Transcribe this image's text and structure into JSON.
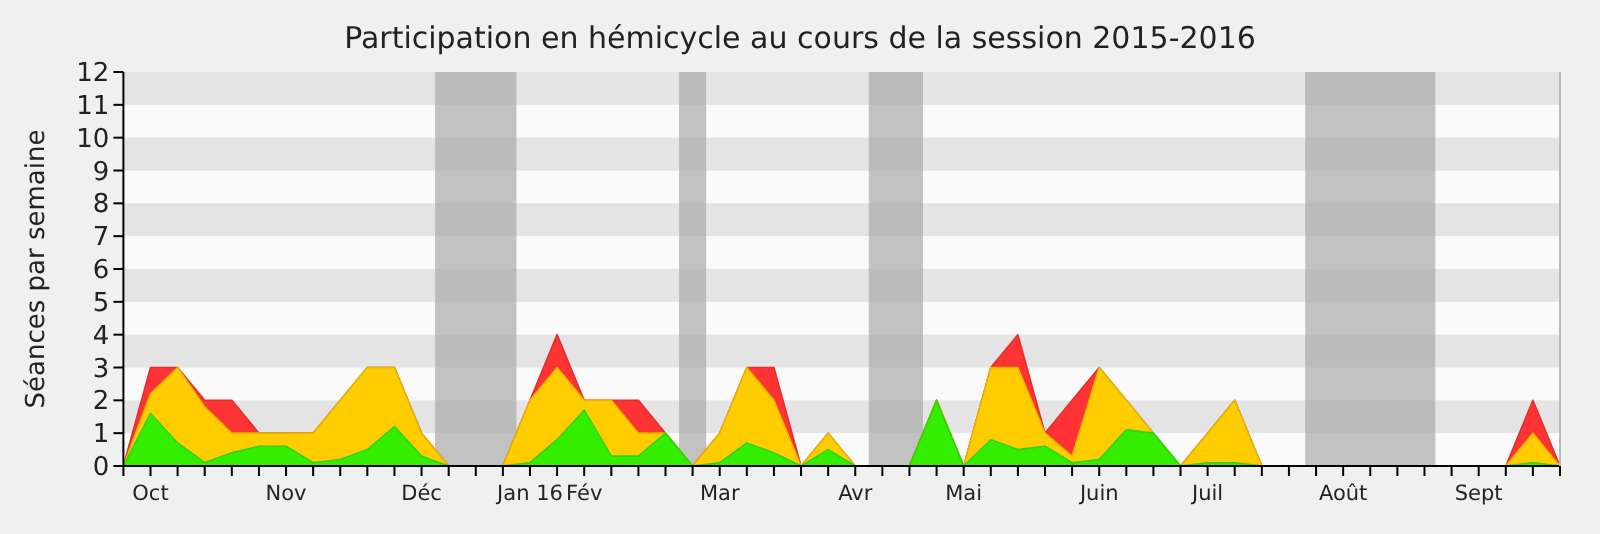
{
  "chart_data": {
    "type": "area",
    "title": "Participation en hémicycle au cours de la session 2015-2016",
    "ylabel": "Séances par semaine",
    "stacked": true,
    "categories": [
      null,
      "Oct",
      null,
      null,
      null,
      null,
      "Nov",
      null,
      null,
      null,
      null,
      "Déc",
      null,
      null,
      null,
      "Jan 16",
      null,
      "Fév",
      null,
      null,
      null,
      null,
      "Mar",
      null,
      null,
      null,
      null,
      "Avr",
      null,
      null,
      null,
      "Mai",
      null,
      null,
      null,
      null,
      "Juin",
      null,
      null,
      null,
      "Juil",
      null,
      null,
      null,
      null,
      "Août",
      null,
      null,
      null,
      null,
      "Sept",
      null,
      null,
      null
    ],
    "ylim": [
      0,
      12
    ],
    "yticks": [
      0,
      1,
      2,
      3,
      4,
      5,
      6,
      7,
      8,
      9,
      10,
      11,
      12
    ],
    "series": [
      {
        "color": "#33ee00",
        "values": [
          0,
          1.6,
          0.7,
          0.1,
          0.4,
          0.6,
          0.6,
          0.1,
          0.2,
          0.5,
          1.2,
          0.3,
          0,
          0,
          0,
          0.1,
          0.8,
          1.7,
          0.3,
          0.3,
          1,
          0,
          0.1,
          0.7,
          0.4,
          0,
          0.5,
          0,
          0,
          0,
          2,
          0,
          0.8,
          0.5,
          0.6,
          0.1,
          0.2,
          1.1,
          1,
          0,
          0.1,
          0.1,
          0,
          0,
          0,
          0,
          0,
          0,
          0,
          0,
          0,
          0,
          0.1,
          0
        ]
      },
      {
        "color": "#ffcc00",
        "values": [
          0,
          0.6,
          2.3,
          1.7,
          0.6,
          0.4,
          0.4,
          0.9,
          1.8,
          2.5,
          1.8,
          0.7,
          0,
          0,
          0,
          1.9,
          2.2,
          0.3,
          1.7,
          0.7,
          0,
          0,
          0.9,
          2.3,
          1.6,
          0,
          0.5,
          0,
          0,
          0,
          0,
          0,
          2.2,
          2.5,
          0.4,
          0.2,
          2.8,
          0.9,
          0,
          0,
          0.9,
          1.9,
          0,
          0,
          0,
          0,
          0,
          0,
          0,
          0,
          0,
          0,
          0.9,
          0
        ]
      },
      {
        "color": "#ff3333",
        "values": [
          0,
          0.8,
          0,
          0.2,
          1,
          0,
          0,
          0,
          0,
          0,
          0,
          0,
          0,
          0,
          0,
          0,
          1,
          0,
          0,
          1,
          0,
          0,
          0,
          0,
          1,
          0,
          0,
          0,
          0,
          0,
          0,
          0,
          0,
          1,
          0,
          1.7,
          0,
          0,
          0,
          0,
          0,
          0,
          0,
          0,
          0,
          0,
          0,
          0,
          0,
          0,
          0,
          0,
          1,
          0
        ]
      }
    ]
  }
}
